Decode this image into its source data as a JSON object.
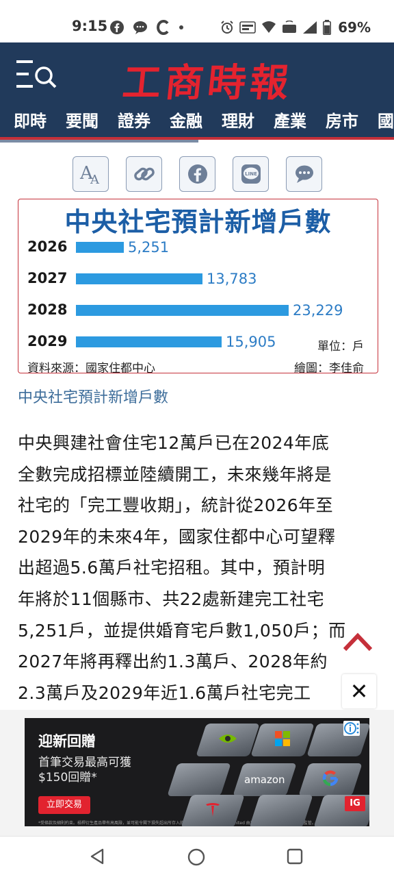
{
  "status_bar": {
    "time": "9:15",
    "battery": "69%",
    "icons_left": [
      "facebook-icon",
      "chat-icon",
      "c-icon",
      "dot-icon"
    ],
    "icons_right": [
      "alarm-icon",
      "auto-hd-icon",
      "wifi-icon",
      "lte-icon",
      "signal-icon",
      "battery-icon"
    ]
  },
  "header": {
    "logo": "工商時報",
    "tabs": [
      "即時",
      "要聞",
      "證券",
      "金融",
      "理財",
      "產業",
      "房市",
      "國"
    ],
    "colors": {
      "background": "#213a5b",
      "logo": "#e4232f",
      "accent": "#c5303a"
    }
  },
  "share_buttons": [
    "font-size-icon",
    "link-icon",
    "facebook-icon",
    "line-icon",
    "comment-icon"
  ],
  "share_labels": {
    "line": "LINE"
  },
  "infographic": {
    "title": "中央社宅預計新增戶數",
    "unit": "單位：戶",
    "source": "資料來源：國家住都中心",
    "credit": "繪圖：李佳俞"
  },
  "chart_data": {
    "type": "bar",
    "orientation": "horizontal",
    "title": "中央社宅預計新增戶數",
    "categories": [
      "2026",
      "2027",
      "2028",
      "2029"
    ],
    "values": [
      5251,
      13783,
      23229,
      15905
    ],
    "value_labels": [
      "5,251",
      "13,783",
      "23,229",
      "15,905"
    ],
    "bar_color": "#2c9ae0",
    "xlim": [
      0,
      23229
    ]
  },
  "caption": "中央社宅預計新增戶數",
  "article": {
    "lines": [
      "中央興建社會住宅12萬戶已在2024年底",
      "全數完成招標並陸續開工，未來幾年將是",
      "社宅的「完工豐收期」，統計從2026年至",
      "2029年的未來4年，國家住都中心可望釋",
      "出超過5.6萬戶社宅招租。其中，預計明",
      "年將於11個縣市、共22處新建完工社宅",
      "5,251戶，並提供婚育宅戶數1,050戶；而",
      "2027年將再釋出約1.3萬戶、2028年約",
      "2.3萬戶及2029年近1.6萬戶社宅完工"
    ]
  },
  "controls": {
    "close_label": "✕"
  },
  "ad": {
    "headline": "迎新回贈",
    "line1": "首筆交易最高可獲",
    "line2": "$150回贈*",
    "cta": "立即交易",
    "fine_print": "*受條款及細則約束。槓桿衍生產品帶有高風險，並可能令閣下損失超出所存入的資金。IG International Limited 由百慕達金融管理局授權並受其監管。",
    "brand_tiles": [
      "amazon"
    ],
    "badge": "IG",
    "info_icon": "info-icon"
  }
}
